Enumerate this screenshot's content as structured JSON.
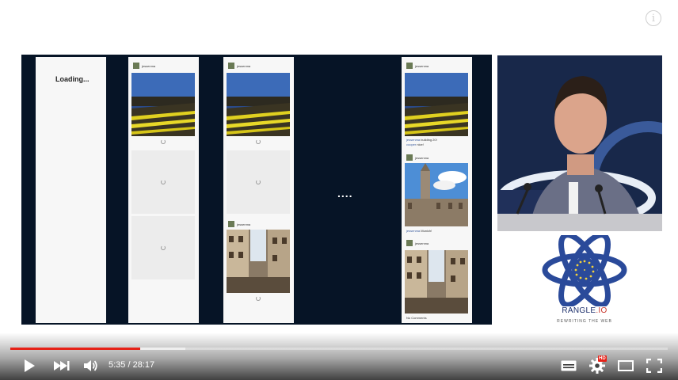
{
  "player": {
    "info_icon": "info-icon",
    "progress_played": 0.197,
    "progress_buffered": 0.266,
    "time_current": "5:35",
    "time_separator": "/",
    "time_total": "28:17",
    "hd_badge": "HD",
    "accent_color": "#e62117"
  },
  "slide": {
    "loading_text": "Loading...",
    "username": "jessenma",
    "ellipsis": "....",
    "captions": [
      {
        "user": "jessenma",
        "text": "building 20!"
      },
      {
        "user": "cooper",
        "text": "nice!"
      }
    ],
    "caption2": {
      "user": "jessenma",
      "text": "Munich!"
    },
    "no_comments": "No Comments"
  },
  "logo": {
    "name": "RANGLE",
    "suffix": ".IO",
    "tagline": "REWRITING THE WEB"
  }
}
